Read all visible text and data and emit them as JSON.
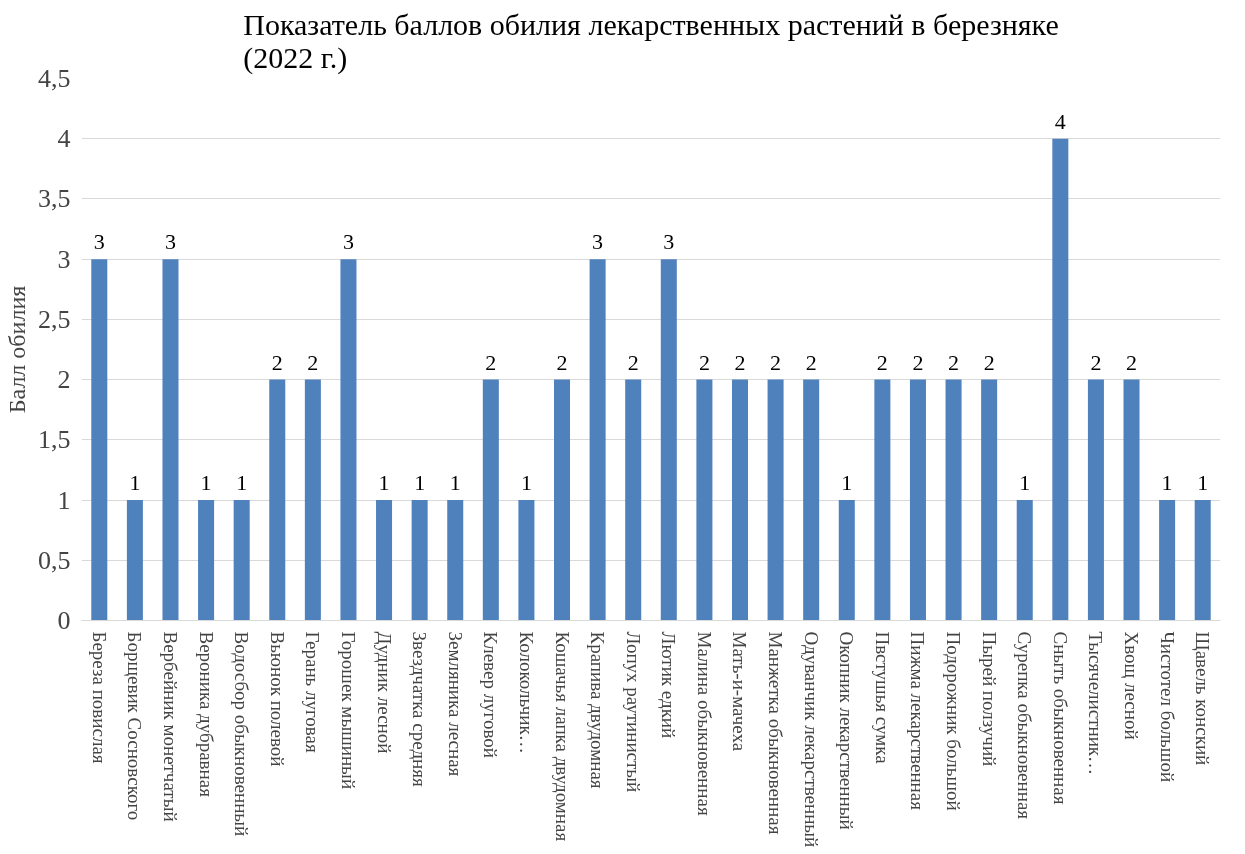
{
  "chart_data": {
    "type": "bar",
    "title": "Показатель баллов обилия лекарственных растений в березняке (2022 г.)",
    "ylabel": "Балл обилия",
    "categories": [
      "Береза повислая",
      "Борщевик Сосновского",
      "Вербейник монетчатый",
      "Вероника дубравная",
      "Водосбор обыкновенный",
      "Вьюнок полевой",
      "Герань луговая",
      "Горошек мышиный",
      "Дудник лесной",
      "Звездчатка средняя",
      "Земляника лесная",
      "Клевер луговой",
      "Колокольчик…",
      "Кошачья лапка двудомная",
      "Крапива двудомная",
      "Лопух раутинистый",
      "Лютик едкий",
      "Малина обыкновенная",
      "Мать-и-мачеха",
      "Манжетка обыкновенная",
      "Одуванчик лекарственный",
      "Окопник лекарственный",
      "Пвстушья сумка",
      "Пижма лекарственная",
      "Подорожник большой",
      "Пырей ползучий",
      "Сурепка обыкновенная",
      "Сныть обыкновенная",
      "Тысячелистник…",
      "Хвощ лесной",
      "Чистотел большой",
      "Щавель конский"
    ],
    "values": [
      3,
      1,
      3,
      1,
      1,
      2,
      2,
      3,
      1,
      1,
      1,
      2,
      1,
      2,
      3,
      2,
      3,
      2,
      2,
      2,
      2,
      1,
      2,
      2,
      2,
      2,
      1,
      4,
      2,
      2,
      1,
      1
    ],
    "color": "#4f81bd",
    "ylim": [
      0,
      4.5
    ],
    "yticks": [
      0,
      {
        "value": 0.5,
        "label": "0,5"
      },
      1,
      {
        "value": 1.5,
        "label": "1,5"
      },
      2,
      {
        "value": 2.5,
        "label": "2,5"
      },
      3,
      {
        "value": 3.5,
        "label": "3,5"
      },
      4,
      {
        "value": 4.5,
        "label": "4,5"
      }
    ],
    "grid": "y",
    "data_labels": true
  }
}
